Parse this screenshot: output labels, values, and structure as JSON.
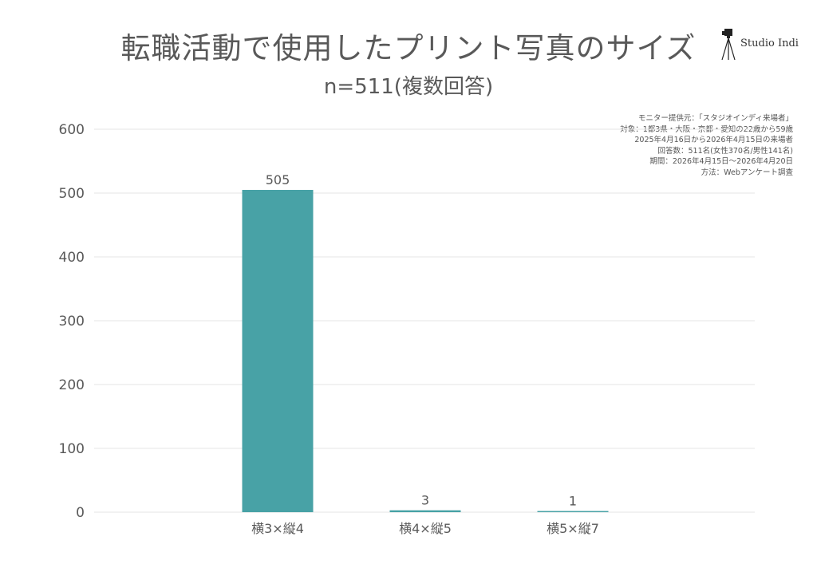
{
  "header": {
    "title": "転職活動で使用したプリント写真のサイズ",
    "subtitle": "n=511(複数回答)",
    "logo_text": "Studio Indi"
  },
  "notes": [
    "モニター提供元：「スタジオインディ来場者」",
    "対象：1都3県・大阪・京都・愛知の22歳から59歳",
    "2025年4月16日から2026年4月15日の来場者",
    "回答数：511名(女性370名/男性141名)",
    "期間：2026年4月15日〜2026年4月20日",
    "方法：Webアンケート調査"
  ],
  "colors": {
    "bar": "#48a2a6",
    "grid": "#e6e6e6",
    "text": "#595959"
  },
  "chart_data": {
    "type": "bar",
    "title": "転職活動で使用したプリント写真のサイズ",
    "subtitle": "n=511(複数回答)",
    "categories": [
      "横3×縦4",
      "横4×縦5",
      "横5×縦7"
    ],
    "values": [
      505,
      3,
      1
    ],
    "data_labels": [
      "505",
      "3",
      "1"
    ],
    "yticks": [
      "0",
      "100",
      "200",
      "300",
      "400",
      "500",
      "600"
    ],
    "ylim": [
      0,
      600
    ],
    "grid": true,
    "legend": false
  }
}
